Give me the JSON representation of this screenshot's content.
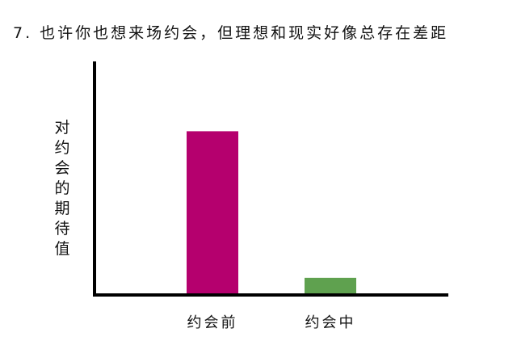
{
  "chart_data": {
    "type": "bar",
    "title": "7. 也许你也想来场约会，但理想和现实好像总存在差距",
    "xlabel": "",
    "ylabel": "对约会的期待值",
    "categories": [
      "约会前",
      "约会中"
    ],
    "values": [
      0.7,
      0.07
    ],
    "colors": [
      "#b5006e",
      "#5fa14f"
    ],
    "ylim": [
      0,
      1
    ],
    "grid": false,
    "y_ticks_shown": false
  }
}
